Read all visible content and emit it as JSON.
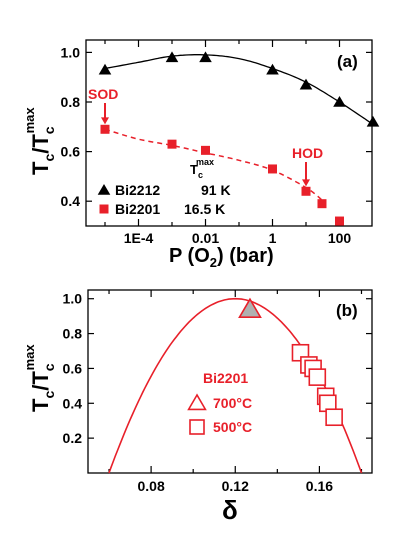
{
  "colors": {
    "red": "#e8202a",
    "black": "#000000",
    "background": "#ffffff"
  },
  "chart_data": [
    {
      "type": "scatter",
      "panel_label": "(a)",
      "xlabel": "P (O",
      "xlabel_sub": "2",
      "xlabel_tail": ") (bar)",
      "ylabel": "T",
      "ylabel_sub": "c",
      "ylabel_slash": "/T",
      "ylabel_sub2": "c",
      "ylabel_sup": "max",
      "xscale": "log",
      "xlim": [
        1e-05,
        1000
      ],
      "ylim": [
        0.3,
        1.05
      ],
      "xticks": [
        0.0001,
        0.01,
        1,
        100
      ],
      "xtick_labels": [
        "1E-4",
        "0.01",
        "1",
        "100"
      ],
      "yticks": [
        0.4,
        0.6,
        0.8,
        1.0
      ],
      "ytick_labels": [
        "0.4",
        "0.6",
        "0.8",
        "1.0"
      ],
      "legend": {
        "header": "T",
        "header_sub": "c",
        "header_sup": "max",
        "entries": [
          {
            "name": "Bi2212",
            "value": "91 K",
            "marker": "triangle",
            "color": "#000000"
          },
          {
            "name": "Bi2201",
            "value": "16.5 K",
            "marker": "square",
            "color": "#e8202a"
          }
        ]
      },
      "series": [
        {
          "name": "Bi2212",
          "marker": "triangle",
          "color": "#000000",
          "x": [
            1e-05,
            0.001,
            0.01,
            1,
            10,
            100,
            1000
          ],
          "y": [
            0.93,
            0.98,
            0.98,
            0.93,
            0.87,
            0.8,
            0.72
          ]
        },
        {
          "name": "Bi2201",
          "marker": "square",
          "color": "#e8202a",
          "x": [
            1e-05,
            0.001,
            0.01,
            1,
            10,
            30,
            100
          ],
          "y": [
            0.69,
            0.63,
            0.605,
            0.53,
            0.44,
            0.39,
            0.32
          ]
        }
      ],
      "fit_black": {
        "x": [
          1e-05,
          0.0001,
          0.001,
          0.01,
          0.1,
          1,
          10,
          100,
          1000
        ],
        "y": [
          0.935,
          0.96,
          0.985,
          0.99,
          0.975,
          0.935,
          0.88,
          0.8,
          0.71
        ]
      },
      "fit_red_dashed": {
        "x": [
          1e-05,
          0.0001,
          0.001,
          0.01,
          0.1,
          1,
          10,
          30
        ],
        "y": [
          0.69,
          0.65,
          0.625,
          0.595,
          0.565,
          0.525,
          0.455,
          0.405
        ]
      },
      "annotations": [
        {
          "text": "SOD",
          "arrow_to": {
            "x": 1e-05,
            "y": 0.71
          }
        },
        {
          "text": "HOD",
          "arrow_to": {
            "x": 10,
            "y": 0.46
          }
        }
      ]
    },
    {
      "type": "scatter",
      "panel_label": "(b)",
      "xlabel": "δ",
      "ylabel": "T",
      "ylabel_sub": "c",
      "ylabel_slash": "/T",
      "ylabel_sub2": "c",
      "ylabel_sup": "max",
      "xlim": [
        0.05,
        0.185
      ],
      "ylim": [
        0,
        1.05
      ],
      "xticks": [
        0.08,
        0.12,
        0.16
      ],
      "xtick_labels": [
        "0.08",
        "0.12",
        "0.16"
      ],
      "yticks": [
        0.2,
        0.4,
        0.6,
        0.8,
        1.0
      ],
      "ytick_labels": [
        "0.2",
        "0.4",
        "0.6",
        "0.8",
        "1.0"
      ],
      "legend": {
        "header": "Bi2201",
        "entries": [
          {
            "name": "700°C",
            "marker": "triangle-open",
            "color": "#e8202a"
          },
          {
            "name": "500°C",
            "marker": "square-open",
            "color": "#e8202a"
          }
        ]
      },
      "series": [
        {
          "name": "700°C",
          "marker": "triangle-open",
          "color": "#e8202a",
          "x": [
            0.127
          ],
          "y": [
            0.94
          ]
        },
        {
          "name": "500°C",
          "marker": "square-open",
          "color": "#e8202a",
          "x": [
            0.151,
            0.155,
            0.157,
            0.159,
            0.163,
            0.164,
            0.167
          ],
          "y": [
            0.69,
            0.62,
            0.6,
            0.55,
            0.44,
            0.4,
            0.32
          ]
        }
      ],
      "parabola": {
        "x_min": 0.06,
        "x_max": 0.18,
        "x_peak": 0.12,
        "y_peak": 1.0
      }
    }
  ]
}
